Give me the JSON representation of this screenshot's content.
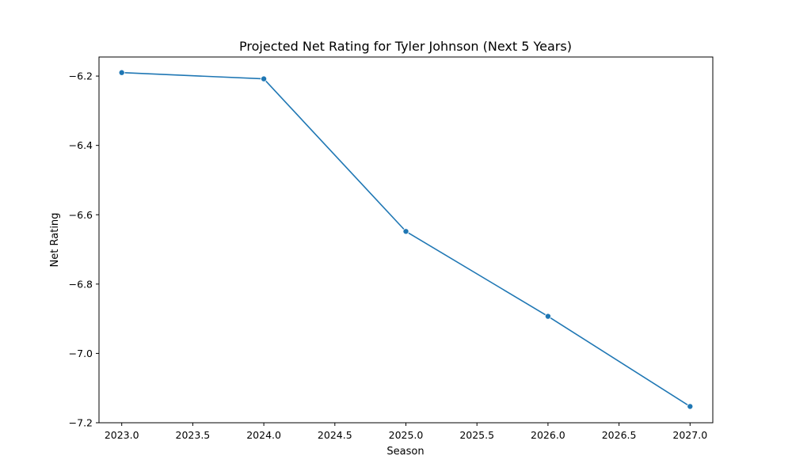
{
  "chart_data": {
    "type": "line",
    "title": "Projected Net Rating for Tyler Johnson (Next 5 Years)",
    "xlabel": "Season",
    "ylabel": "Net Rating",
    "xlim": [
      2022.84,
      2027.16
    ],
    "ylim": [
      -7.2,
      -6.145
    ],
    "x_ticks": [
      2023.0,
      2023.5,
      2024.0,
      2024.5,
      2025.0,
      2025.5,
      2026.0,
      2026.5,
      2027.0
    ],
    "x_tick_labels": [
      "2023.0",
      "2023.5",
      "2024.0",
      "2024.5",
      "2025.0",
      "2025.5",
      "2026.0",
      "2026.5",
      "2027.0"
    ],
    "y_ticks": [
      -6.2,
      -6.4,
      -6.6,
      -6.8,
      -7.0,
      -7.2
    ],
    "y_tick_labels": [
      "−6.2",
      "−6.4",
      "−6.6",
      "−6.8",
      "−7.0",
      "−7.2"
    ],
    "grid": false,
    "series": [
      {
        "x": [
          2023,
          2024,
          2025,
          2026,
          2027
        ],
        "values": [
          -6.19,
          -6.208,
          -6.648,
          -6.893,
          -7.153
        ],
        "color": "#1f77b4",
        "marker": "circle"
      }
    ]
  }
}
